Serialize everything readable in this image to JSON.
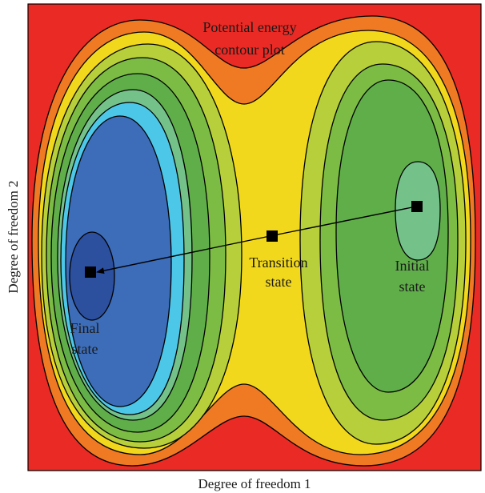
{
  "title_lines": [
    "Potential energy",
    "contour plot"
  ],
  "x_axis_label": "Degree of freedom 1",
  "y_axis_label": "Degree of freedom 2",
  "states": {
    "final": {
      "lines": [
        "Final",
        "state"
      ]
    },
    "transition": {
      "lines": [
        "Transition",
        "state"
      ]
    },
    "initial": {
      "lines": [
        "Initial",
        "state"
      ]
    }
  },
  "colors": {
    "background": "#ea2a24",
    "orange": "#f07a24",
    "yellow": "#f2d81c",
    "yellow_green": "#b6cf3a",
    "green": "#7cbc44",
    "green_dark": "#60ae4a",
    "teal_light": "#74c28a",
    "cyan": "#4dc7e8",
    "blue": "#3d6db8",
    "blue_dark": "#2c4f9e",
    "outline": "#000000"
  }
}
